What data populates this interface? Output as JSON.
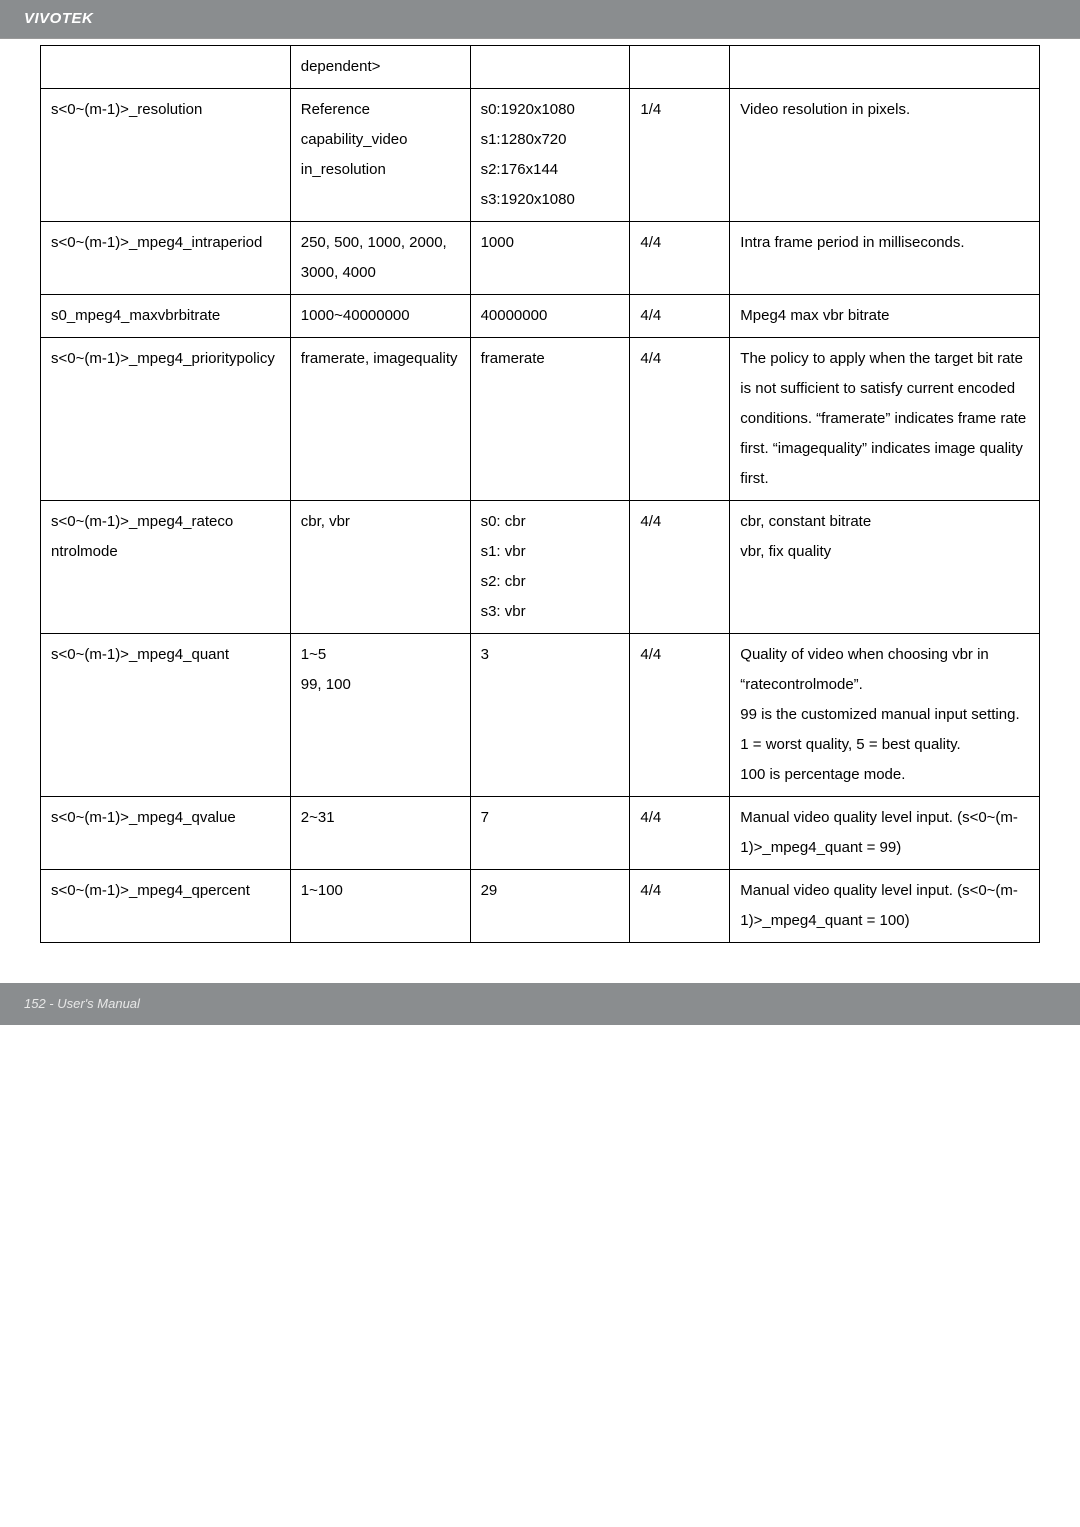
{
  "header": {
    "brand": "VIVOTEK"
  },
  "footer": {
    "page_label": "152 - User's Manual"
  },
  "table": {
    "rows": [
      {
        "p": "",
        "v": "dependent>",
        "d": "",
        "s": "",
        "desc": ""
      },
      {
        "p": "s<0~(m-1)>_resolution",
        "v": "Reference capability_video​in_resolution",
        "d": "s0:1920x1080\ns1:1280x720\ns2:176x144\ns3:1920x1080",
        "s": "1/4",
        "desc": "Video resolution in pixels."
      },
      {
        "p": "s<0~(m-1)>_mpeg4_intrap​eriod",
        "v": "250, 500, 1000, 2000, 3000, 4000",
        "d": "1000",
        "s": "4/4",
        "desc": "Intra frame period in milliseconds."
      },
      {
        "p": "s0_mpeg4_maxvbrbitrate",
        "v": "1000~40000000",
        "d": "40000000",
        "s": "4/4",
        "desc": "Mpeg4 max vbr bitrate"
      },
      {
        "p": "s<0~(m-1)>_mpeg4_priorit​ypolicy",
        "v": "framerate, imagequality",
        "d": "framerate",
        "s": "4/4",
        "desc": "The policy to apply when the target bit rate is not sufficient to satisfy current encoded conditions. “framerate” indicates frame rate first. “imagequality” indicates image quality first."
      },
      {
        "p": "s<0~(m-1)>_mpeg4_rateco​ntrolmode",
        "v": "cbr, vbr",
        "d": "s0: cbr\ns1: vbr\ns2: cbr\ns3: vbr",
        "s": "4/4",
        "desc": "cbr, constant bitrate\nvbr, fix quality"
      },
      {
        "p": "s<0~(m-1)>_mpeg4_quant",
        "v": "1~5\n99, 100",
        "d": "3",
        "s": "4/4",
        "desc": "Quality of video when choosing vbr in “ratecontrolmode”.\n99 is the customized manual input setting.\n1 = worst quality, 5 = best quality.\n100 is percentage mode."
      },
      {
        "p": "s<0~(m-1)>_mpeg4_qvalue",
        "v": "2~31",
        "d": "7",
        "s": "4/4",
        "desc": "Manual video quality level input. (s<0~(m-1)>_mpeg4_quan​t = 99)"
      },
      {
        "p": "s<0~(m-1)>_mpeg4_qperce​nt",
        "v": "1~100",
        "d": "29",
        "s": "4/4",
        "desc": "Manual video quality level input. (s<0~(m-1)>_mpeg4_quan​t = 100)"
      }
    ]
  }
}
